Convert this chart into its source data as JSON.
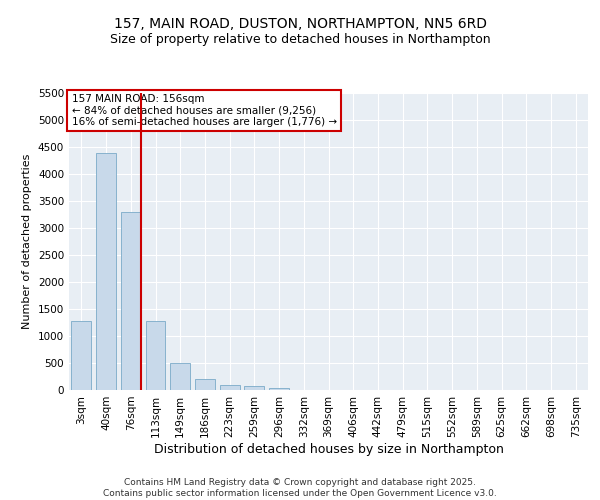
{
  "title": "157, MAIN ROAD, DUSTON, NORTHAMPTON, NN5 6RD",
  "subtitle": "Size of property relative to detached houses in Northampton",
  "xlabel": "Distribution of detached houses by size in Northampton",
  "ylabel": "Number of detached properties",
  "categories": [
    "3sqm",
    "40sqm",
    "76sqm",
    "113sqm",
    "149sqm",
    "186sqm",
    "223sqm",
    "259sqm",
    "296sqm",
    "332sqm",
    "369sqm",
    "406sqm",
    "442sqm",
    "479sqm",
    "515sqm",
    "552sqm",
    "589sqm",
    "625sqm",
    "662sqm",
    "698sqm",
    "735sqm"
  ],
  "values": [
    1270,
    4380,
    3300,
    1270,
    500,
    200,
    100,
    65,
    45,
    0,
    0,
    0,
    0,
    0,
    0,
    0,
    0,
    0,
    0,
    0,
    0
  ],
  "bar_color": "#c8d9ea",
  "bar_edge_color": "#7aaac8",
  "vline_after_index": 2,
  "vline_color": "#cc0000",
  "annotation_text": "157 MAIN ROAD: 156sqm\n← 84% of detached houses are smaller (9,256)\n16% of semi-detached houses are larger (1,776) →",
  "annotation_box_color": "#cc0000",
  "ylim": [
    0,
    5500
  ],
  "yticks": [
    0,
    500,
    1000,
    1500,
    2000,
    2500,
    3000,
    3500,
    4000,
    4500,
    5000,
    5500
  ],
  "background_color": "#e8eef4",
  "footer_line1": "Contains HM Land Registry data © Crown copyright and database right 2025.",
  "footer_line2": "Contains public sector information licensed under the Open Government Licence v3.0.",
  "title_fontsize": 10,
  "subtitle_fontsize": 9,
  "ylabel_fontsize": 8,
  "xlabel_fontsize": 9,
  "tick_fontsize": 7.5,
  "annotation_fontsize": 7.5,
  "footer_fontsize": 6.5
}
